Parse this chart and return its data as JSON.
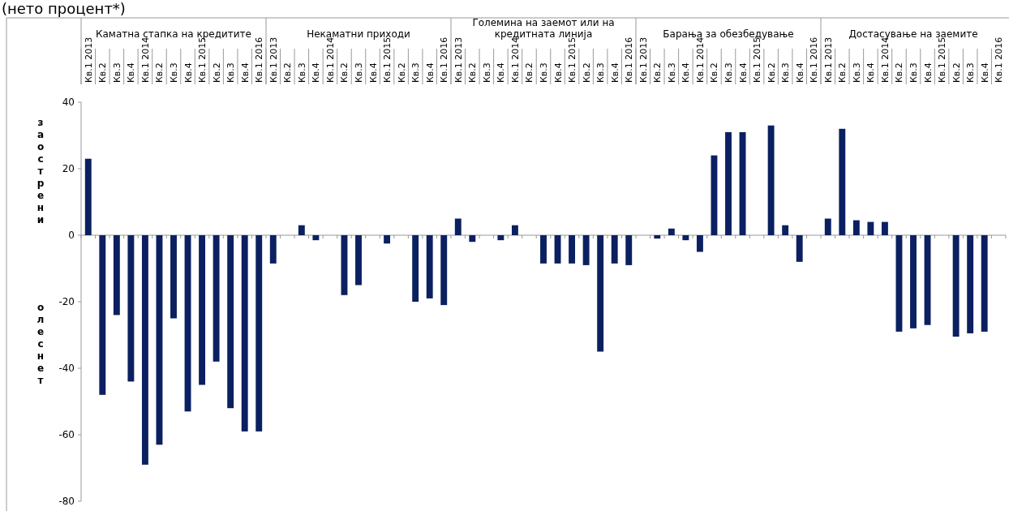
{
  "chart_data": {
    "type": "bar",
    "title": "(нето процент*)",
    "categories": [
      "Кв.1 2013",
      "Кв.2",
      "Кв.3",
      "Кв.4",
      "Кв.1 2014",
      "Кв.2",
      "Кв.3",
      "Кв.4",
      "Кв.1 2015",
      "Кв.2",
      "Кв.3",
      "Кв.4",
      "Кв.1 2016",
      "Кв.1 2013",
      "Кв.2",
      "Кв.3",
      "Кв.4",
      "Кв.1 2014",
      "Кв.2",
      "Кв.3",
      "Кв.4",
      "Кв.1 2015",
      "Кв.2",
      "Кв.3",
      "Кв.4",
      "Кв.1 2016",
      "Кв.1 2013",
      "Кв.2",
      "Кв.3",
      "Кв.4",
      "Кв.1 2014",
      "Кв.2",
      "Кв.3",
      "Кв.4",
      "Кв.1 2015",
      "Кв.2",
      "Кв.3",
      "Кв.4",
      "Кв.1 2016",
      "Кв.1 2013",
      "Кв.2",
      "Кв.3",
      "Кв.4",
      "Кв.1 2014",
      "Кв.2",
      "Кв.3",
      "Кв.4",
      "Кв.1 2015",
      "Кв.2",
      "Кв.3",
      "Кв.4",
      "Кв.1 2016",
      "Кв.1 2013",
      "Кв.2",
      "Кв.3",
      "Кв.4",
      "Кв.1 2014",
      "Кв.2",
      "Кв.3",
      "Кв.4",
      "Кв.1 2015",
      "Кв.2",
      "Кв.3",
      "Кв.4",
      "Кв.1 2016"
    ],
    "values": [
      23,
      -48,
      -24,
      -44,
      -69,
      -63,
      -25,
      -53,
      -45,
      -38,
      -52,
      -59,
      -59,
      -8.5,
      0,
      3,
      -1.5,
      0,
      -18,
      -15,
      0,
      -2.5,
      0,
      -20,
      -19,
      -21,
      5,
      -2,
      0,
      -1.5,
      3,
      0,
      -8.5,
      -8.5,
      -8.5,
      -9,
      -35,
      -8.5,
      -9,
      0,
      -1,
      2,
      -1.5,
      -5,
      24,
      31,
      31,
      0,
      33,
      3,
      -8,
      0,
      5,
      32,
      4.5,
      4,
      4,
      -29,
      -28,
      -27,
      0,
      -30.5,
      -29.5,
      -29,
      0
    ],
    "color": "#0b2060",
    "ylim": [
      -80,
      40
    ],
    "yticks": [
      -80,
      -60,
      -40,
      -20,
      0,
      20,
      40
    ],
    "annotations": [
      "Каматна стапка на кредитите",
      "Некаматни приходи",
      "Големина на заемот или на кредитната линија",
      "Барања за обезбедување",
      "Достасување на заемите",
      "заострени",
      "олеснет"
    ]
  }
}
